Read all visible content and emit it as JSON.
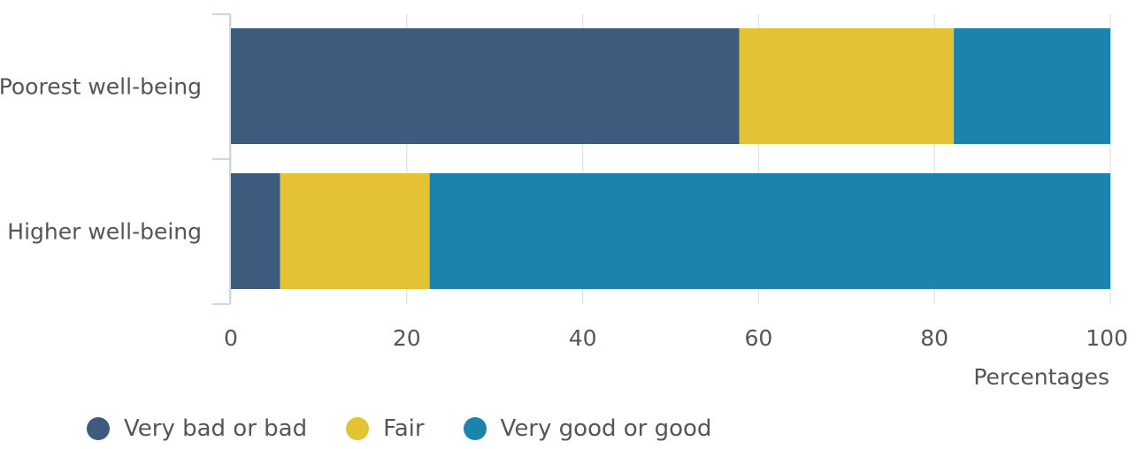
{
  "chart_data": {
    "type": "bar",
    "orientation": "horizontal",
    "stacked": true,
    "categories": [
      "Poorest well-being",
      "Higher well-being"
    ],
    "series": [
      {
        "name": "Very bad or bad",
        "color": "#3c5b7d",
        "values": [
          57.8,
          5.6
        ]
      },
      {
        "name": "Fair",
        "color": "#e3c234",
        "values": [
          24.4,
          17.0
        ]
      },
      {
        "name": "Very good or good",
        "color": "#1a84ac",
        "values": [
          17.8,
          77.4
        ]
      }
    ],
    "x_ticks": [
      "0",
      "20",
      "40",
      "60",
      "80",
      "100"
    ],
    "xlim": [
      0,
      100
    ],
    "xlabel": "Percentages",
    "grid": true,
    "legend_position": "bottom-left"
  }
}
